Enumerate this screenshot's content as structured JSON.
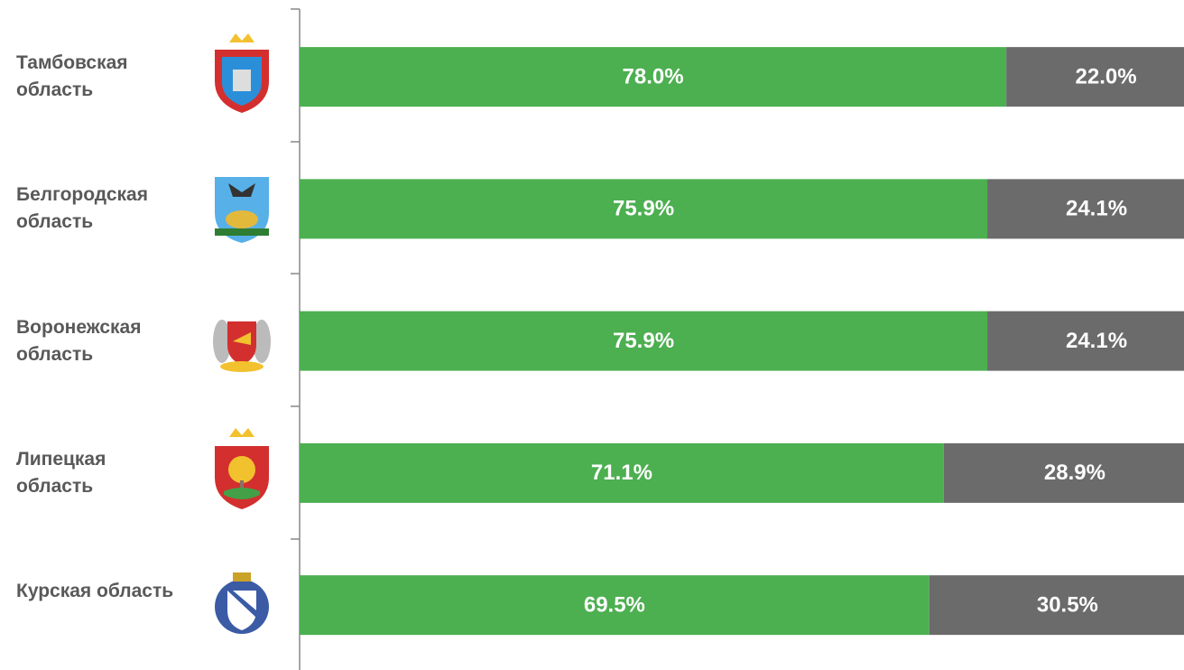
{
  "chart_data": {
    "type": "stacked_bar_horizontal",
    "categories": [
      "Тамбовская область",
      "Белгородская область",
      "Воронежская область",
      "Липецкая область",
      "Курская область"
    ],
    "xlim": [
      0,
      100
    ],
    "series": [
      {
        "color": "#4caf50",
        "values": [
          78.0,
          75.9,
          75.9,
          71.1,
          69.5
        ],
        "value_labels": [
          "78.0%",
          "75.9%",
          "75.9%",
          "71.1%",
          "69.5%"
        ]
      },
      {
        "color": "#6b6b6b",
        "values": [
          22.0,
          24.1,
          24.1,
          28.9,
          30.5
        ],
        "value_labels": [
          "22.0%",
          "24.1%",
          "24.1%",
          "28.9%",
          "30.5%"
        ]
      }
    ]
  }
}
